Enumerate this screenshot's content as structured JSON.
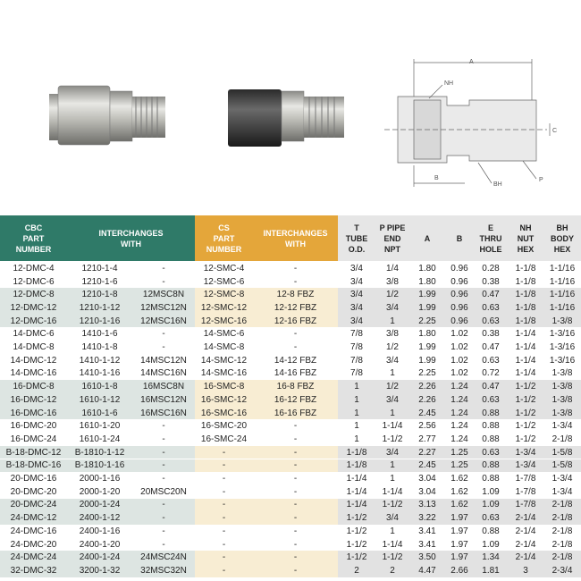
{
  "diagram": {
    "labels": [
      "A",
      "NH",
      "C",
      "BH",
      "P",
      "B"
    ]
  },
  "table": {
    "headers": [
      [
        "CBC",
        "PART",
        "NUMBER"
      ],
      [
        "INTERCHANGES",
        "WITH"
      ],
      [
        "CS",
        "PART",
        "NUMBER"
      ],
      [
        "INTERCHANGES",
        "WITH"
      ],
      [
        "T",
        "TUBE",
        "O.D."
      ],
      [
        "P PIPE",
        "END",
        "NPT"
      ],
      [
        "A"
      ],
      [
        "B"
      ],
      [
        "E",
        "THRU",
        "HOLE"
      ],
      [
        "NH",
        "NUT",
        "HEX"
      ],
      [
        "BH",
        "BODY",
        "HEX"
      ]
    ],
    "rows": [
      [
        "12-DMC-4",
        "1210-1-4",
        "-",
        "12-SMC-4",
        "-",
        "3/4",
        "1/4",
        "1.80",
        "0.96",
        "0.28",
        "1-1/8",
        "1-1/16"
      ],
      [
        "12-DMC-6",
        "1210-1-6",
        "-",
        "12-SMC-6",
        "-",
        "3/4",
        "3/8",
        "1.80",
        "0.96",
        "0.38",
        "1-1/8",
        "1-1/16"
      ],
      [
        "12-DMC-8",
        "1210-1-8",
        "12MSC8N",
        "12-SMC-8",
        "12-8 FBZ",
        "3/4",
        "1/2",
        "1.99",
        "0.96",
        "0.47",
        "1-1/8",
        "1-1/16"
      ],
      [
        "12-DMC-12",
        "1210-1-12",
        "12MSC12N",
        "12-SMC-12",
        "12-12 FBZ",
        "3/4",
        "3/4",
        "1.99",
        "0.96",
        "0.63",
        "1-1/8",
        "1-1/16"
      ],
      [
        "12-DMC-16",
        "1210-1-16",
        "12MSC16N",
        "12-SMC-16",
        "12-16 FBZ",
        "3/4",
        "1",
        "2.25",
        "0.96",
        "0.63",
        "1-1/8",
        "1-3/8"
      ],
      [
        "14-DMC-6",
        "1410-1-6",
        "-",
        "14-SMC-6",
        "-",
        "7/8",
        "3/8",
        "1.80",
        "1.02",
        "0.38",
        "1-1/4",
        "1-3/16"
      ],
      [
        "14-DMC-8",
        "1410-1-8",
        "-",
        "14-SMC-8",
        "-",
        "7/8",
        "1/2",
        "1.99",
        "1.02",
        "0.47",
        "1-1/4",
        "1-3/16"
      ],
      [
        "14-DMC-12",
        "1410-1-12",
        "14MSC12N",
        "14-SMC-12",
        "14-12 FBZ",
        "7/8",
        "3/4",
        "1.99",
        "1.02",
        "0.63",
        "1-1/4",
        "1-3/16"
      ],
      [
        "14-DMC-16",
        "1410-1-16",
        "14MSC16N",
        "14-SMC-16",
        "14-16 FBZ",
        "7/8",
        "1",
        "2.25",
        "1.02",
        "0.72",
        "1-1/4",
        "1-3/8"
      ],
      [
        "16-DMC-8",
        "1610-1-8",
        "16MSC8N",
        "16-SMC-8",
        "16-8 FBZ",
        "1",
        "1/2",
        "2.26",
        "1.24",
        "0.47",
        "1-1/2",
        "1-3/8"
      ],
      [
        "16-DMC-12",
        "1610-1-12",
        "16MSC12N",
        "16-SMC-12",
        "16-12 FBZ",
        "1",
        "3/4",
        "2.26",
        "1.24",
        "0.63",
        "1-1/2",
        "1-3/8"
      ],
      [
        "16-DMC-16",
        "1610-1-6",
        "16MSC16N",
        "16-SMC-16",
        "16-16 FBZ",
        "1",
        "1",
        "2.45",
        "1.24",
        "0.88",
        "1-1/2",
        "1-3/8"
      ],
      [
        "16-DMC-20",
        "1610-1-20",
        "-",
        "16-SMC-20",
        "-",
        "1",
        "1-1/4",
        "2.56",
        "1.24",
        "0.88",
        "1-1/2",
        "1-3/4"
      ],
      [
        "16-DMC-24",
        "1610-1-24",
        "-",
        "16-SMC-24",
        "-",
        "1",
        "1-1/2",
        "2.77",
        "1.24",
        "0.88",
        "1-1/2",
        "2-1/8"
      ],
      [
        "B-18-DMC-12",
        "B-1810-1-12",
        "-",
        "-",
        "-",
        "1-1/8",
        "3/4",
        "2.27",
        "1.25",
        "0.63",
        "1-3/4",
        "1-5/8"
      ],
      [
        "B-18-DMC-16",
        "B-1810-1-16",
        "-",
        "-",
        "-",
        "1-1/8",
        "1",
        "2.45",
        "1.25",
        "0.88",
        "1-3/4",
        "1-5/8"
      ],
      [
        "20-DMC-16",
        "2000-1-16",
        "-",
        "-",
        "-",
        "1-1/4",
        "1",
        "3.04",
        "1.62",
        "0.88",
        "1-7/8",
        "1-3/4"
      ],
      [
        "20-DMC-20",
        "2000-1-20",
        "20MSC20N",
        "-",
        "-",
        "1-1/4",
        "1-1/4",
        "3.04",
        "1.62",
        "1.09",
        "1-7/8",
        "1-3/4"
      ],
      [
        "20-DMC-24",
        "2000-1-24",
        "-",
        "-",
        "-",
        "1-1/4",
        "1-1/2",
        "3.13",
        "1.62",
        "1.09",
        "1-7/8",
        "2-1/8"
      ],
      [
        "24-DMC-12",
        "2400-1-12",
        "-",
        "-",
        "-",
        "1-1/2",
        "3/4",
        "3.22",
        "1.97",
        "0.63",
        "2-1/4",
        "2-1/8"
      ],
      [
        "24-DMC-16",
        "2400-1-16",
        "-",
        "-",
        "-",
        "1-1/2",
        "1",
        "3.41",
        "1.97",
        "0.88",
        "2-1/4",
        "2-1/8"
      ],
      [
        "24-DMC-20",
        "2400-1-20",
        "-",
        "-",
        "-",
        "1-1/2",
        "1-1/4",
        "3.41",
        "1.97",
        "1.09",
        "2-1/4",
        "2-1/8"
      ],
      [
        "24-DMC-24",
        "2400-1-24",
        "24MSC24N",
        "-",
        "-",
        "1-1/2",
        "1-1/2",
        "3.50",
        "1.97",
        "1.34",
        "2-1/4",
        "2-1/8"
      ],
      [
        "32-DMC-32",
        "3200-1-32",
        "32MSC32N",
        "-",
        "-",
        "2",
        "2",
        "4.47",
        "2.66",
        "1.81",
        "3",
        "2-3/4"
      ]
    ]
  }
}
